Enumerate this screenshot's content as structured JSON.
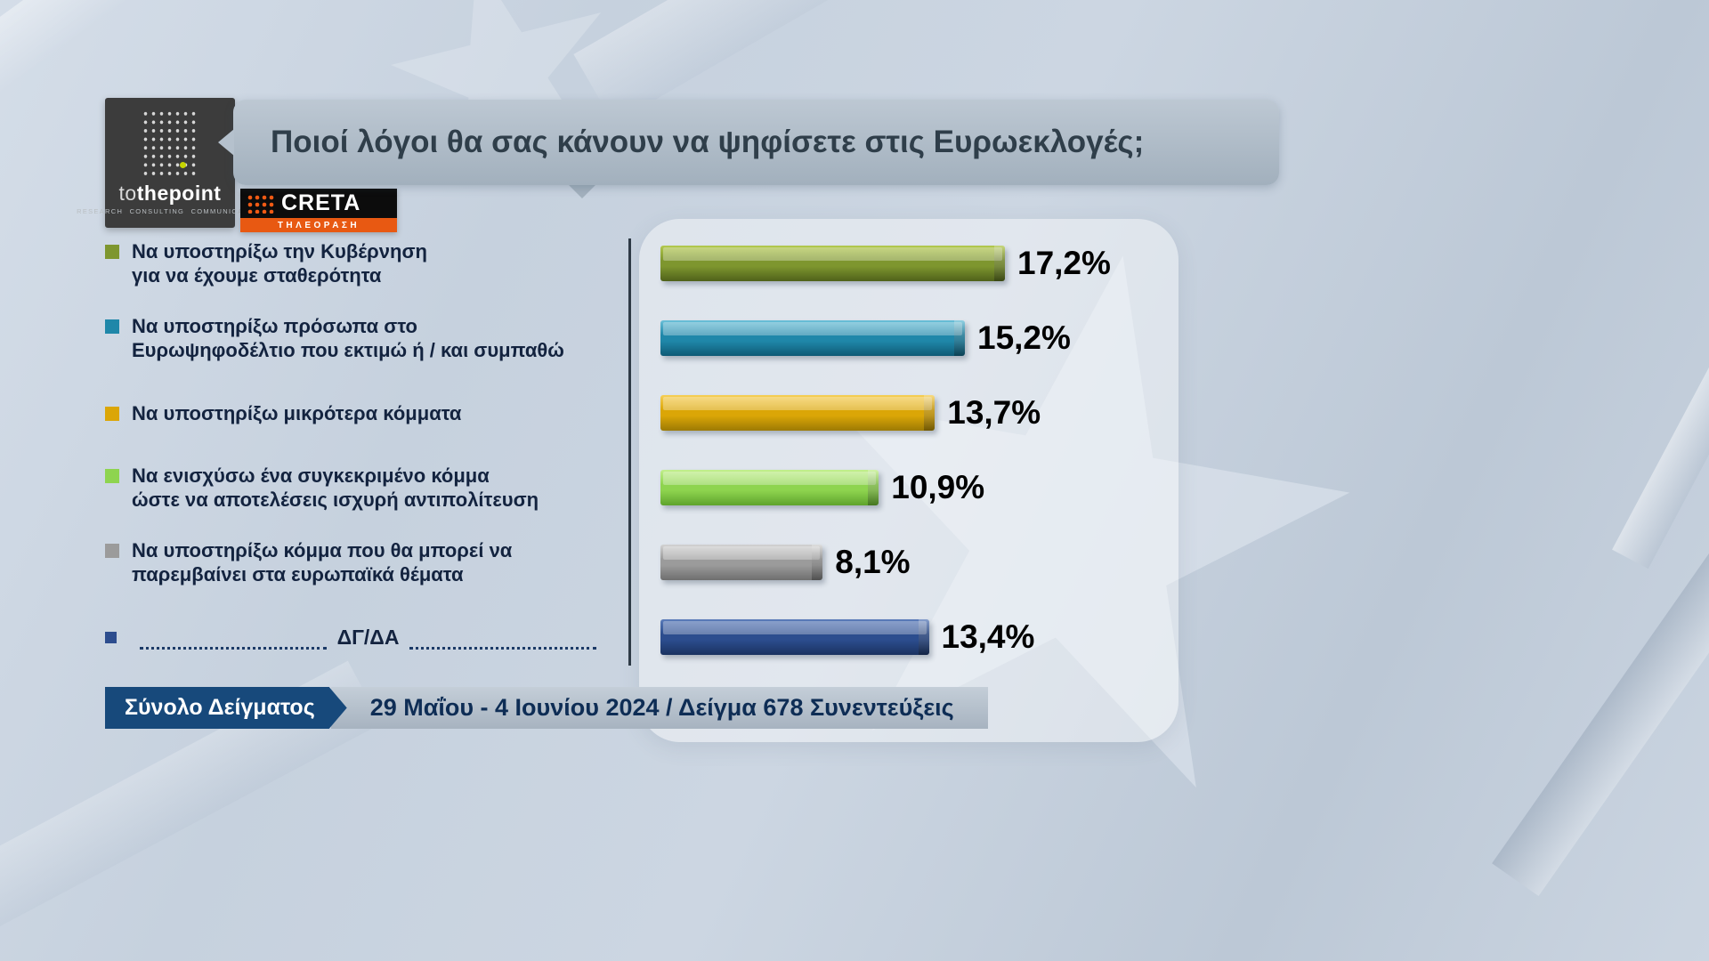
{
  "header": {
    "title": "Ποιοί λόγοι θα σας κάνουν να ψηφίσετε στις Ευρωεκλογές;",
    "tothepoint": {
      "part1": "to",
      "part2": "the",
      "part3": "point",
      "tagline": "RESEARCH CONSULTING COMMUNICATION"
    },
    "creta": {
      "name": "CRETA",
      "subtitle": "ΤΗΛΕΟΡΑΣΗ"
    }
  },
  "chart_data": {
    "type": "bar",
    "orientation": "horizontal",
    "title": "Ποιοί λόγοι θα σας κάνουν να ψηφίσετε στις Ευρωεκλογές;",
    "categories": [
      "Να υποστηρίξω την Κυβέρνηση για να έχουμε σταθερότητα",
      "Να υποστηρίξω πρόσωπα στο Ευρωψηφοδέλτιο που εκτιμώ ή / και συμπαθώ",
      "Να υποστηρίξω μικρότερα κόμματα",
      "Να ενισχύσω ένα συγκεκριμένο κόμμα ώστε να αποτελέσεις ισχυρή αντιπολίτευση",
      "Να υποστηρίξω κόμμα που θα μπορεί να παρεμβαίνει στα ευρωπαϊκά θέματα",
      "ΔΓ/ΔΑ"
    ],
    "values": [
      17.2,
      15.2,
      13.7,
      10.9,
      8.1,
      13.4
    ],
    "value_labels": [
      "17,2%",
      "15,2%",
      "13,7%",
      "10,9%",
      "8,1%",
      "13,4%"
    ],
    "colors": [
      "#7e962f",
      "#1f87a9",
      "#dba607",
      "#8ed44f",
      "#9b9b9b",
      "#2c4d8e"
    ],
    "xlim": [
      0,
      18
    ],
    "legend_position": "left",
    "grid": false
  },
  "rows": [
    {
      "label": "Να υποστηρίξω την Κυβέρνηση\nγια να έχουμε σταθερότητα",
      "value": 17.2,
      "value_label": "17,2%",
      "dotted": false,
      "color_light": "#b3c94e",
      "color_mid": "#7e962f",
      "color_dark": "#4f611a"
    },
    {
      "label": "Να υποστηρίξω πρόσωπα στο\nΕυρωψηφοδέλτιο που εκτιμώ ή / και συμπαθώ",
      "value": 15.2,
      "value_label": "15,2%",
      "dotted": false,
      "color_light": "#6cc0d8",
      "color_mid": "#1f87a9",
      "color_dark": "#0f5a75"
    },
    {
      "label": "Να υποστηρίξω μικρότερα κόμματα",
      "value": 13.7,
      "value_label": "13,7%",
      "dotted": false,
      "color_light": "#f6cf57",
      "color_mid": "#dba607",
      "color_dark": "#9c7a04"
    },
    {
      "label": "Να ενισχύσω ένα συγκεκριμένο κόμμα\nώστε να αποτελέσεις ισχυρή αντιπολίτευση",
      "value": 10.9,
      "value_label": "10,9%",
      "dotted": false,
      "color_light": "#c2ef8d",
      "color_mid": "#8ed44f",
      "color_dark": "#5ea32c"
    },
    {
      "label": "Να υποστηρίξω κόμμα που θα μπορεί να\nπαρεμβαίνει στα ευρωπαϊκά θέματα",
      "value": 8.1,
      "value_label": "8,1%",
      "dotted": false,
      "color_light": "#d2d2d2",
      "color_mid": "#9b9b9b",
      "color_dark": "#6e6e6e"
    },
    {
      "label": "ΔΓ/ΔΑ",
      "value": 13.4,
      "value_label": "13,4%",
      "dotted": true,
      "color_light": "#5b7cba",
      "color_mid": "#2c4d8e",
      "color_dark": "#1a3260"
    }
  ],
  "footer": {
    "sample_label": "Σύνολο Δείγματος",
    "sample_info": "29 Μαΐου - 4 Ιουνίου 2024 / Δείγμα 678 Συνεντεύξεις"
  }
}
